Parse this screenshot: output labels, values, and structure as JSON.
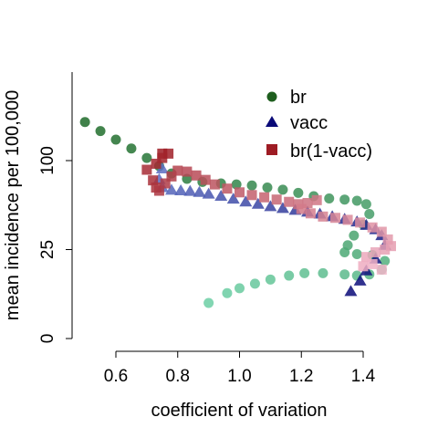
{
  "chart_data": {
    "type": "scatter",
    "xlabel": "coefficient of variation",
    "ylabel": "mean incidence per 100,000",
    "x_ticks": [
      0.6,
      0.8,
      1.0,
      1.2,
      1.4
    ],
    "x_tick_labels": [
      "0.6",
      "0.8",
      "1.0",
      "1.2",
      "1.4"
    ],
    "y_ticks": [
      0,
      25,
      100
    ],
    "y_tick_labels": [
      "0",
      "25",
      "100"
    ],
    "y_scale": "sqrt",
    "xlim": [
      0.46,
      1.5
    ],
    "ylim": [
      0,
      150
    ],
    "grid": false,
    "legend_position": "top-right",
    "legend": [
      {
        "label": "br",
        "marker": "circle",
        "color": "#1e5e1e"
      },
      {
        "label": "vacc",
        "marker": "triangle",
        "color": "#0a0a78"
      },
      {
        "label": "br(1-vacc)",
        "marker": "square",
        "color": "#9e1c24"
      }
    ],
    "series": [
      {
        "name": "br",
        "marker": "circle",
        "color_start": "#1f6b2a",
        "color_end": "#6ccfa5",
        "points": [
          {
            "x": 0.5,
            "y": 148.0
          },
          {
            "x": 0.55,
            "y": 136.0
          },
          {
            "x": 0.6,
            "y": 125.0
          },
          {
            "x": 0.65,
            "y": 114.0
          },
          {
            "x": 0.7,
            "y": 103.0
          },
          {
            "x": 0.74,
            "y": 94.0
          },
          {
            "x": 0.78,
            "y": 86.0
          },
          {
            "x": 0.83,
            "y": 80.5
          },
          {
            "x": 0.88,
            "y": 77.5
          },
          {
            "x": 0.94,
            "y": 76.0
          },
          {
            "x": 0.99,
            "y": 75.0
          },
          {
            "x": 1.04,
            "y": 74.0
          },
          {
            "x": 1.09,
            "y": 72.0
          },
          {
            "x": 1.14,
            "y": 70.0
          },
          {
            "x": 1.19,
            "y": 67.0
          },
          {
            "x": 1.24,
            "y": 64.0
          },
          {
            "x": 1.29,
            "y": 62.0
          },
          {
            "x": 1.34,
            "y": 61.0
          },
          {
            "x": 1.38,
            "y": 60.0
          },
          {
            "x": 1.41,
            "y": 57.0
          },
          {
            "x": 1.42,
            "y": 49.0
          },
          {
            "x": 1.4,
            "y": 41.0
          },
          {
            "x": 1.37,
            "y": 33.5
          },
          {
            "x": 1.35,
            "y": 27.5
          },
          {
            "x": 1.34,
            "y": 23.5
          },
          {
            "x": 1.38,
            "y": 22.5
          },
          {
            "x": 1.43,
            "y": 22.0
          },
          {
            "x": 1.47,
            "y": 19.0
          },
          {
            "x": 1.46,
            "y": 15.0
          },
          {
            "x": 1.42,
            "y": 13.0
          },
          {
            "x": 1.38,
            "y": 12.5
          },
          {
            "x": 1.34,
            "y": 13.0
          },
          {
            "x": 1.27,
            "y": 13.5
          },
          {
            "x": 1.21,
            "y": 13.5
          },
          {
            "x": 1.16,
            "y": 12.5
          },
          {
            "x": 1.1,
            "y": 11.0
          },
          {
            "x": 1.05,
            "y": 9.5
          },
          {
            "x": 1.0,
            "y": 8.0
          },
          {
            "x": 0.96,
            "y": 6.5
          },
          {
            "x": 0.9,
            "y": 4.0
          }
        ]
      },
      {
        "name": "vacc",
        "marker": "triangle",
        "color_start": "#0a0a78",
        "color_end": "#5c6fc2",
        "points": [
          {
            "x": 1.36,
            "y": 7.0
          },
          {
            "x": 1.39,
            "y": 10.5
          },
          {
            "x": 1.41,
            "y": 14.5
          },
          {
            "x": 1.44,
            "y": 20.0
          },
          {
            "x": 1.47,
            "y": 27.5
          },
          {
            "x": 1.46,
            "y": 33.5
          },
          {
            "x": 1.44,
            "y": 37.5
          },
          {
            "x": 1.41,
            "y": 40.5
          },
          {
            "x": 1.38,
            "y": 43.0
          },
          {
            "x": 1.34,
            "y": 45.0
          },
          {
            "x": 1.3,
            "y": 47.0
          },
          {
            "x": 1.26,
            "y": 49.0
          },
          {
            "x": 1.22,
            "y": 50.5
          },
          {
            "x": 1.18,
            "y": 52.0
          },
          {
            "x": 1.14,
            "y": 53.5
          },
          {
            "x": 1.1,
            "y": 55.0
          },
          {
            "x": 1.06,
            "y": 57.0
          },
          {
            "x": 1.02,
            "y": 59.0
          },
          {
            "x": 0.98,
            "y": 61.5
          },
          {
            "x": 0.94,
            "y": 64.0
          },
          {
            "x": 0.9,
            "y": 66.0
          },
          {
            "x": 0.87,
            "y": 67.5
          },
          {
            "x": 0.84,
            "y": 68.5
          },
          {
            "x": 0.81,
            "y": 69.0
          },
          {
            "x": 0.78,
            "y": 69.5
          },
          {
            "x": 0.75,
            "y": 72.0
          },
          {
            "x": 0.74,
            "y": 80.0
          },
          {
            "x": 0.75,
            "y": 91.0
          }
        ]
      },
      {
        "name": "br(1-vacc)",
        "marker": "square",
        "color_start": "#9e1c24",
        "color_end": "#f2b5c9",
        "points": [
          {
            "x": 0.75,
            "y": 108.0
          },
          {
            "x": 0.77,
            "y": 108.0
          },
          {
            "x": 0.75,
            "y": 103.0
          },
          {
            "x": 0.73,
            "y": 96.5
          },
          {
            "x": 0.7,
            "y": 90.0
          },
          {
            "x": 0.72,
            "y": 79.0
          },
          {
            "x": 0.73,
            "y": 72.0
          },
          {
            "x": 0.74,
            "y": 69.0
          },
          {
            "x": 0.76,
            "y": 76.0
          },
          {
            "x": 0.78,
            "y": 83.0
          },
          {
            "x": 0.8,
            "y": 89.0
          },
          {
            "x": 0.83,
            "y": 88.0
          },
          {
            "x": 0.86,
            "y": 84.0
          },
          {
            "x": 0.89,
            "y": 79.5
          },
          {
            "x": 0.92,
            "y": 75.0
          },
          {
            "x": 0.96,
            "y": 71.0
          },
          {
            "x": 1.0,
            "y": 67.5
          },
          {
            "x": 1.04,
            "y": 65.0
          },
          {
            "x": 1.08,
            "y": 63.0
          },
          {
            "x": 1.12,
            "y": 61.0
          },
          {
            "x": 1.16,
            "y": 59.0
          },
          {
            "x": 1.19,
            "y": 57.0
          },
          {
            "x": 1.22,
            "y": 58.0
          },
          {
            "x": 1.25,
            "y": 60.5
          },
          {
            "x": 1.2,
            "y": 53.0
          },
          {
            "x": 1.23,
            "y": 49.5
          },
          {
            "x": 1.27,
            "y": 47.0
          },
          {
            "x": 1.31,
            "y": 46.0
          },
          {
            "x": 1.35,
            "y": 44.5
          },
          {
            "x": 1.39,
            "y": 42.5
          },
          {
            "x": 1.43,
            "y": 39.0
          },
          {
            "x": 1.46,
            "y": 36.0
          },
          {
            "x": 1.48,
            "y": 31.0
          },
          {
            "x": 1.49,
            "y": 27.0
          },
          {
            "x": 1.47,
            "y": 25.0
          },
          {
            "x": 1.44,
            "y": 23.5
          },
          {
            "x": 1.41,
            "y": 21.0
          },
          {
            "x": 1.4,
            "y": 16.5
          },
          {
            "x": 1.43,
            "y": 17.5
          },
          {
            "x": 1.46,
            "y": 15.0
          }
        ]
      }
    ]
  }
}
